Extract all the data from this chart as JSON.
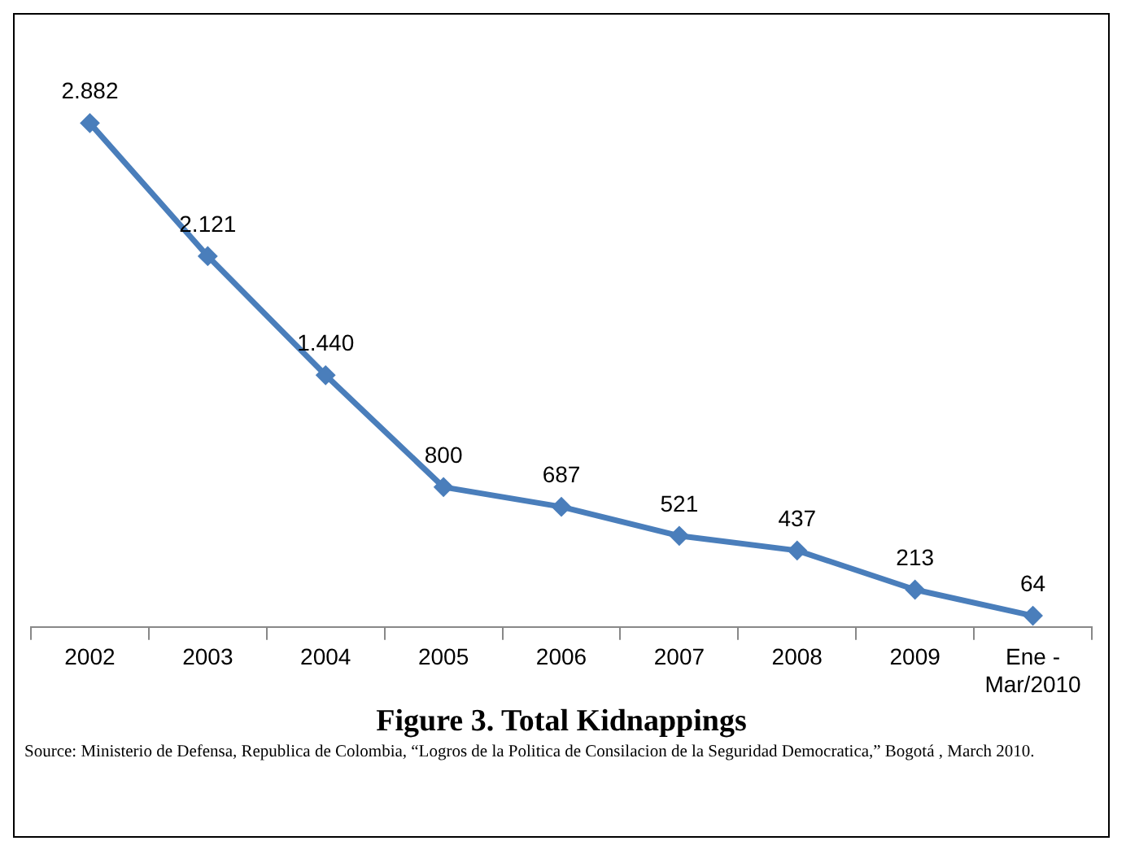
{
  "chart_data": {
    "type": "line",
    "title": "Figure 3. Total Kidnappings",
    "categories": [
      "2002",
      "2003",
      "2004",
      "2005",
      "2006",
      "2007",
      "2008",
      "2009",
      "Ene -\nMar/2010"
    ],
    "series": [
      {
        "color": "#4a7ebb",
        "values": [
          2882,
          2121,
          1440,
          800,
          687,
          521,
          437,
          213,
          64
        ],
        "value_labels": [
          "2.882",
          "2.121",
          "1.440",
          "800",
          "687",
          "521",
          "437",
          "213",
          "64"
        ]
      }
    ],
    "marker": "diamond",
    "line_style": "solid",
    "grid": false,
    "legend": false,
    "tick_labels": "x",
    "annotations": [
      "Source: Ministerio de Defensa, Republica de Colombia, “Logros de la Politica de Consilacion de la Seguridad Democratica,” Bogotá , March 2010."
    ]
  }
}
